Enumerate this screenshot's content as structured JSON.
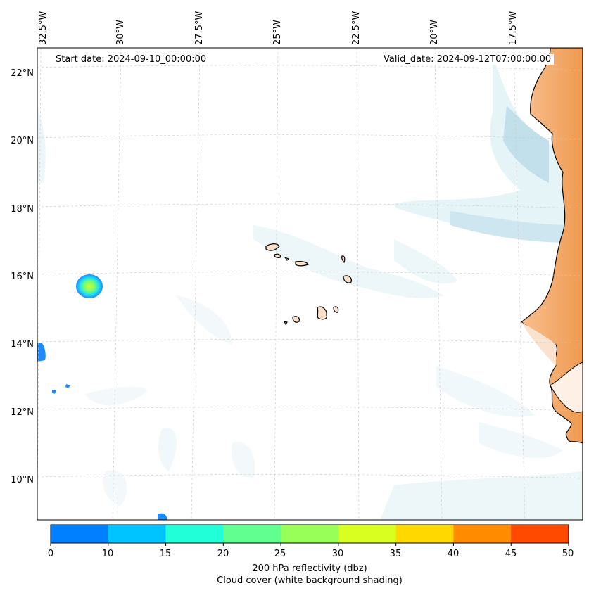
{
  "map": {
    "start_date": "Start date: 2024-09-10_00:00:00",
    "valid_date": "Valid_date: 2024-09-12T07:00:00.00",
    "lon_labels": [
      "32.5°W",
      "30°W",
      "27.5°W",
      "25°W",
      "22.5°W",
      "20°W",
      "17.5°W"
    ],
    "lat_labels": [
      "22°N",
      "20°N",
      "18°N",
      "16°N",
      "14°N",
      "12°N",
      "10°N"
    ],
    "features": [
      "cape-verde-islands",
      "west-africa-coastline",
      "reflectivity-cell",
      "cloud-cover-shading"
    ]
  },
  "colorbar": {
    "ticks": [
      "0",
      "10",
      "15",
      "20",
      "25",
      "30",
      "35",
      "40",
      "45",
      "50"
    ],
    "colors": [
      "#0080ff",
      "#00c4ff",
      "#20ffd8",
      "#60ff90",
      "#98ff58",
      "#d8ff20",
      "#ffd800",
      "#ff8c00",
      "#ff4a00"
    ],
    "label_line1": "200 hPa reflectivity (dbz)",
    "label_line2": "Cloud cover (white background shading)"
  }
}
